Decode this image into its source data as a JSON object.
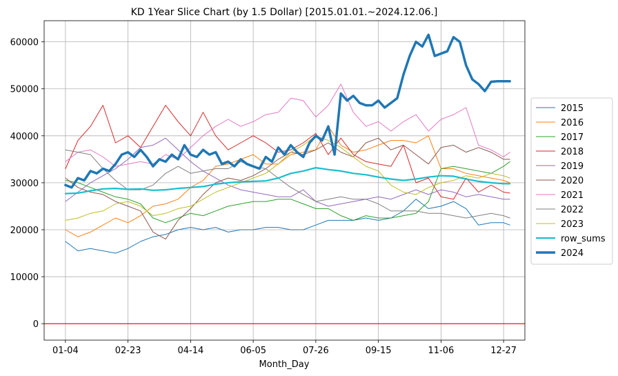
{
  "chart_data": {
    "type": "line",
    "title": "KD 1Year Slice Chart (by 1.5 Dollar) [2015.01.01.~2024.12.06.]",
    "xlabel": "Month_Day",
    "ylabel": "",
    "x_ticks": [
      {
        "x": 0,
        "label": "01-04"
      },
      {
        "x": 50,
        "label": "02-23"
      },
      {
        "x": 100,
        "label": "04-14"
      },
      {
        "x": 150,
        "label": "06-05"
      },
      {
        "x": 200,
        "label": "07-26"
      },
      {
        "x": 250,
        "label": "09-15"
      },
      {
        "x": 300,
        "label": "11-06"
      },
      {
        "x": 350,
        "label": "12-27"
      }
    ],
    "xlim": [
      -17,
      367
    ],
    "ylim": [
      -3500,
      64500
    ],
    "y_ticks": [
      0,
      10000,
      20000,
      30000,
      40000,
      50000,
      60000
    ],
    "grid": true,
    "legend_position": "center-right",
    "hline": {
      "y": 0,
      "color": "#ff0000"
    },
    "series": [
      {
        "name": "2015",
        "color": "#1f77b4",
        "width": 1,
        "x": [
          0,
          10,
          20,
          30,
          40,
          50,
          60,
          70,
          80,
          90,
          100,
          110,
          120,
          130,
          140,
          150,
          160,
          170,
          180,
          190,
          200,
          210,
          220,
          230,
          240,
          250,
          260,
          270,
          280,
          290,
          300,
          310,
          320,
          330,
          340,
          350,
          355
        ],
        "y": [
          17500,
          15500,
          16000,
          15500,
          15000,
          16000,
          17500,
          18500,
          19000,
          20000,
          20500,
          20000,
          20500,
          19500,
          20000,
          20000,
          20500,
          20500,
          20000,
          20000,
          21000,
          22000,
          22000,
          22000,
          22500,
          22000,
          22500,
          24000,
          26500,
          24500,
          25000,
          26000,
          24500,
          21000,
          21500,
          21500,
          21000
        ]
      },
      {
        "name": "2016",
        "color": "#ff7f0e",
        "width": 1,
        "x": [
          0,
          10,
          20,
          30,
          40,
          50,
          60,
          70,
          80,
          90,
          100,
          110,
          120,
          130,
          140,
          150,
          160,
          170,
          180,
          190,
          200,
          210,
          220,
          230,
          240,
          250,
          260,
          270,
          280,
          290,
          300,
          310,
          320,
          330,
          340,
          350,
          355
        ],
        "y": [
          20000,
          18500,
          19500,
          21000,
          22500,
          21500,
          23000,
          25000,
          25500,
          26500,
          29000,
          30500,
          33500,
          34000,
          35000,
          36000,
          34000,
          34000,
          36000,
          36500,
          37000,
          42000,
          38000,
          36500,
          37000,
          38000,
          39000,
          39000,
          38500,
          40000,
          33000,
          33000,
          32000,
          31500,
          31000,
          30500,
          30000
        ]
      },
      {
        "name": "2017",
        "color": "#2ca02c",
        "width": 1,
        "x": [
          0,
          10,
          20,
          30,
          40,
          50,
          60,
          70,
          80,
          90,
          100,
          110,
          120,
          130,
          140,
          150,
          160,
          170,
          180,
          190,
          200,
          210,
          220,
          230,
          240,
          250,
          260,
          270,
          280,
          290,
          300,
          310,
          320,
          330,
          340,
          350,
          355
        ],
        "y": [
          30500,
          30000,
          29000,
          28000,
          27000,
          26500,
          25500,
          22500,
          21500,
          22500,
          23500,
          23000,
          24000,
          25000,
          25500,
          26000,
          26000,
          26500,
          26500,
          25500,
          24500,
          24500,
          23000,
          22000,
          23000,
          22500,
          22500,
          23000,
          23500,
          26000,
          33000,
          33500,
          33000,
          32500,
          32000,
          33500,
          34500
        ]
      },
      {
        "name": "2018",
        "color": "#d62728",
        "width": 1,
        "x": [
          0,
          10,
          20,
          30,
          40,
          50,
          60,
          70,
          80,
          90,
          100,
          110,
          120,
          130,
          140,
          150,
          160,
          170,
          180,
          190,
          200,
          210,
          220,
          230,
          240,
          250,
          260,
          270,
          280,
          290,
          300,
          310,
          320,
          330,
          340,
          350,
          355
        ],
        "y": [
          33000,
          39000,
          42000,
          46500,
          38500,
          40000,
          37500,
          42000,
          46500,
          43000,
          40000,
          45000,
          40000,
          37000,
          38500,
          40000,
          38500,
          36500,
          37000,
          38500,
          40500,
          36000,
          39500,
          36000,
          34500,
          34000,
          33500,
          38000,
          30000,
          31000,
          27000,
          26500,
          31000,
          28000,
          29500,
          28000,
          27800
        ]
      },
      {
        "name": "2019",
        "color": "#9467bd",
        "width": 1,
        "x": [
          0,
          10,
          20,
          30,
          40,
          50,
          60,
          70,
          80,
          90,
          100,
          110,
          120,
          130,
          140,
          150,
          160,
          170,
          180,
          190,
          200,
          210,
          220,
          230,
          240,
          250,
          260,
          270,
          280,
          290,
          300,
          310,
          320,
          330,
          340,
          350,
          355
        ],
        "y": [
          26000,
          28000,
          30000,
          31500,
          33000,
          35000,
          37500,
          38000,
          39500,
          37000,
          34500,
          32500,
          31000,
          29500,
          28500,
          28000,
          27500,
          27000,
          27000,
          28500,
          26000,
          25000,
          25500,
          26000,
          26500,
          27000,
          26500,
          27500,
          28500,
          27500,
          28500,
          28000,
          27000,
          27500,
          27000,
          26500,
          26500
        ]
      },
      {
        "name": "2020",
        "color": "#8c564b",
        "width": 1,
        "x": [
          0,
          10,
          20,
          30,
          40,
          50,
          60,
          70,
          80,
          90,
          100,
          110,
          120,
          130,
          140,
          150,
          160,
          170,
          180,
          190,
          200,
          210,
          220,
          230,
          240,
          250,
          260,
          270,
          280,
          290,
          300,
          310,
          320,
          330,
          340,
          350,
          355
        ],
        "y": [
          31000,
          29000,
          28000,
          27500,
          26000,
          25000,
          24000,
          19500,
          18000,
          22000,
          24500,
          27500,
          30000,
          31000,
          30500,
          31500,
          33000,
          35000,
          36500,
          36000,
          37000,
          38500,
          36500,
          35500,
          38500,
          39500,
          37000,
          38000,
          36000,
          34000,
          37500,
          38000,
          36500,
          37500,
          36500,
          35000,
          35000
        ]
      },
      {
        "name": "2021",
        "color": "#e377c2",
        "width": 1,
        "x": [
          0,
          10,
          20,
          30,
          40,
          50,
          60,
          70,
          80,
          90,
          100,
          110,
          120,
          130,
          140,
          150,
          160,
          170,
          180,
          190,
          200,
          210,
          220,
          230,
          240,
          250,
          260,
          270,
          280,
          290,
          300,
          310,
          320,
          330,
          340,
          350,
          355
        ],
        "y": [
          34500,
          36500,
          37000,
          35500,
          33500,
          34000,
          34500,
          34000,
          36000,
          35000,
          37500,
          40000,
          42000,
          43500,
          42000,
          43000,
          44500,
          45000,
          48000,
          47500,
          44000,
          46500,
          51000,
          45000,
          42000,
          43000,
          41000,
          43000,
          44500,
          41000,
          43500,
          44500,
          46000,
          38000,
          37000,
          35500,
          36500
        ]
      },
      {
        "name": "2022",
        "color": "#7f7f7f",
        "width": 1,
        "x": [
          0,
          10,
          20,
          30,
          40,
          50,
          60,
          70,
          80,
          90,
          100,
          110,
          120,
          130,
          140,
          150,
          160,
          170,
          180,
          190,
          200,
          210,
          220,
          230,
          240,
          250,
          260,
          270,
          280,
          290,
          300,
          310,
          320,
          330,
          340,
          350,
          355
        ],
        "y": [
          37000,
          36500,
          36000,
          33000,
          30500,
          28500,
          28500,
          29500,
          32000,
          33500,
          32000,
          32500,
          33000,
          33000,
          34500,
          33500,
          33000,
          31000,
          29000,
          27500,
          26000,
          26500,
          27000,
          26500,
          26500,
          25500,
          24000,
          24000,
          24000,
          23500,
          23500,
          23000,
          22500,
          23000,
          23500,
          23000,
          22500
        ]
      },
      {
        "name": "2023",
        "color": "#bcbd22",
        "width": 1,
        "x": [
          0,
          10,
          20,
          30,
          40,
          50,
          60,
          70,
          80,
          90,
          100,
          110,
          120,
          130,
          140,
          150,
          160,
          170,
          180,
          190,
          200,
          210,
          220,
          230,
          240,
          250,
          260,
          270,
          280,
          290,
          300,
          310,
          320,
          330,
          340,
          350,
          355
        ],
        "y": [
          22000,
          22500,
          23500,
          24000,
          25500,
          26000,
          25000,
          23000,
          23500,
          24500,
          25000,
          26500,
          28000,
          29000,
          30000,
          31000,
          32000,
          34000,
          36500,
          38000,
          40000,
          39000,
          37500,
          35500,
          33500,
          32500,
          29500,
          28000,
          27500,
          29000,
          30000,
          30500,
          31500,
          31000,
          32000,
          31500,
          31000
        ]
      },
      {
        "name": "row_sums",
        "color": "#17becf",
        "width": 2.2,
        "x": [
          0,
          10,
          20,
          30,
          40,
          50,
          60,
          70,
          80,
          90,
          100,
          110,
          120,
          130,
          140,
          150,
          160,
          170,
          180,
          190,
          200,
          210,
          220,
          230,
          240,
          250,
          260,
          270,
          280,
          290,
          300,
          310,
          320,
          330,
          340,
          350,
          355
        ],
        "y": [
          27700,
          27800,
          28300,
          28700,
          28800,
          28600,
          28700,
          28400,
          28500,
          28800,
          29000,
          29200,
          29700,
          30000,
          30200,
          30300,
          30400,
          31000,
          32000,
          32500,
          33200,
          32800,
          32500,
          32000,
          31700,
          31200,
          30800,
          30500,
          30800,
          31200,
          31500,
          31400,
          30800,
          30300,
          30000,
          29800,
          29800
        ]
      },
      {
        "name": "2024",
        "color": "#1f77b4",
        "width": 3.5,
        "x": [
          0,
          5,
          10,
          15,
          20,
          25,
          30,
          35,
          40,
          45,
          50,
          55,
          60,
          65,
          70,
          75,
          80,
          85,
          90,
          95,
          100,
          105,
          110,
          115,
          120,
          125,
          130,
          135,
          140,
          145,
          150,
          155,
          160,
          165,
          170,
          175,
          180,
          185,
          190,
          195,
          200,
          205,
          210,
          215,
          220,
          225,
          230,
          235,
          240,
          245,
          250,
          255,
          260,
          265,
          270,
          275,
          280,
          285,
          290,
          295,
          300,
          305,
          310,
          315,
          320,
          325,
          330,
          335,
          340,
          345,
          350,
          355
        ],
        "y": [
          29500,
          29000,
          31000,
          30500,
          32500,
          32000,
          33000,
          32500,
          34000,
          36000,
          36500,
          35500,
          37000,
          35500,
          33500,
          35000,
          34500,
          36000,
          35000,
          38000,
          36000,
          35500,
          37000,
          36000,
          36500,
          34000,
          34500,
          33500,
          35000,
          34000,
          33500,
          33000,
          35500,
          34500,
          37500,
          36000,
          38000,
          36500,
          35500,
          38500,
          40000,
          39000,
          42000,
          36000,
          49000,
          47500,
          48500,
          47000,
          46500,
          46500,
          47500,
          46000,
          47000,
          48000,
          53000,
          57000,
          60000,
          59000,
          61500,
          57000,
          57500,
          58000,
          61000,
          60000,
          55000,
          52000,
          51000,
          49500,
          51500,
          51600,
          51600,
          51600
        ]
      }
    ]
  }
}
